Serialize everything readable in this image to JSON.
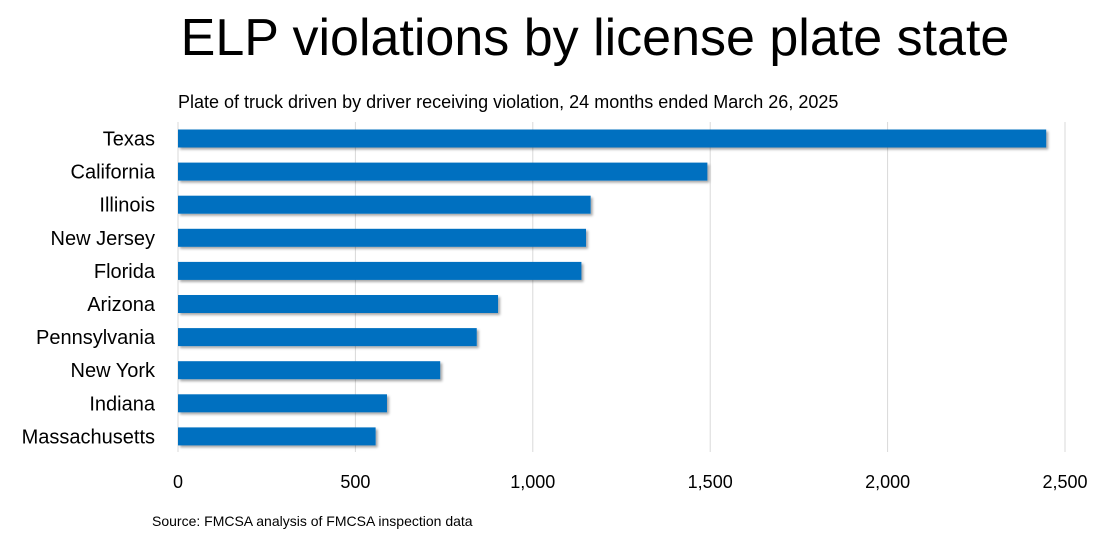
{
  "chart_data": {
    "type": "bar",
    "orientation": "horizontal",
    "title": "ELP violations by license plate state",
    "subtitle": "Plate of truck driven by driver receiving violation, 24 months ended March 26, 2025",
    "source": "Source: FMCSA analysis of FMCSA inspection data",
    "categories": [
      "Texas",
      "California",
      "Illinois",
      "New Jersey",
      "Florida",
      "Arizona",
      "Pennsylvania",
      "New York",
      "Indiana",
      "Massachusetts"
    ],
    "values": [
      2447,
      1492,
      1163,
      1150,
      1137,
      902,
      842,
      739,
      589,
      557
    ],
    "xlim": [
      0,
      2500
    ],
    "xticks": [
      0,
      500,
      1000,
      1500,
      2000,
      2500
    ],
    "xtick_labels": [
      "0",
      "500",
      "1,000",
      "1,500",
      "2,000",
      "2,500"
    ],
    "xlabel": "",
    "ylabel": "",
    "grid": true,
    "legend": "none",
    "bar_color": "#0070C0",
    "grid_color": "#D9D9D9"
  }
}
